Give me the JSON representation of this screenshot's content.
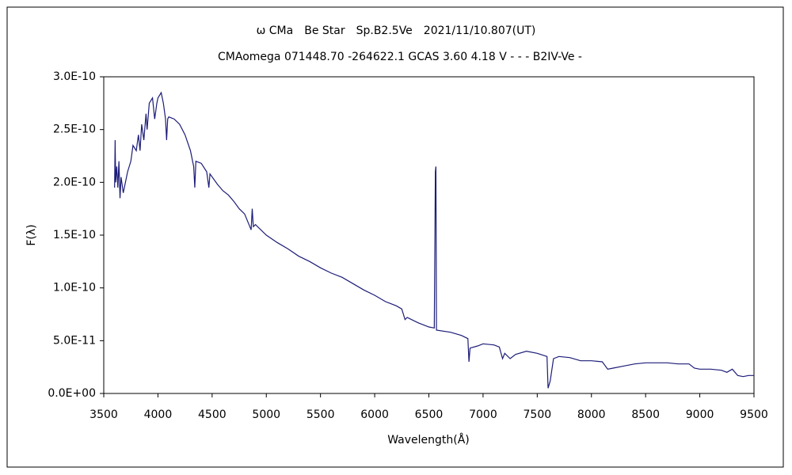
{
  "chart_data": {
    "type": "line",
    "title": "ω CMa　Be Star　Sp.B2.5Ve　2021/11/10.807(UT)",
    "subtitle": "CMAomega 071448.70 -264622.1 GCAS 3.60 4.18 V - - - B2IV-Ve -",
    "x_label": "Wavelength(Å)",
    "y_label": "F(λ)",
    "xlim": [
      3500,
      9500
    ],
    "xticks": [
      3500,
      4000,
      4500,
      5000,
      5500,
      6000,
      6500,
      7000,
      7500,
      8000,
      8500,
      9000,
      9500
    ],
    "ylim": [
      0,
      3e-10
    ],
    "yticks": [
      {
        "value": 0,
        "label": "0.0E+00"
      },
      {
        "value": 5e-11,
        "label": "5.0E-11"
      },
      {
        "value": 1e-10,
        "label": "1.0E-10"
      },
      {
        "value": 1.5e-10,
        "label": "1.5E-10"
      },
      {
        "value": 2e-10,
        "label": "2.0E-10"
      },
      {
        "value": 2.5e-10,
        "label": "2.5E-10"
      },
      {
        "value": 3e-10,
        "label": "3.0E-10"
      }
    ],
    "series": [
      {
        "color": "#1c1c78",
        "x": [
          3600,
          3605,
          3610,
          3620,
          3630,
          3640,
          3650,
          3660,
          3680,
          3700,
          3720,
          3750,
          3770,
          3800,
          3820,
          3835,
          3850,
          3870,
          3890,
          3900,
          3920,
          3950,
          3970,
          3990,
          4000,
          4030,
          4050,
          4070,
          4080,
          4090,
          4100,
          4150,
          4200,
          4250,
          4300,
          4330,
          4340,
          4350,
          4400,
          4450,
          4470,
          4480,
          4550,
          4600,
          4650,
          4700,
          4750,
          4800,
          4840,
          4860,
          4870,
          4880,
          4900,
          5000,
          5100,
          5200,
          5300,
          5400,
          5500,
          5600,
          5700,
          5800,
          5900,
          6000,
          6100,
          6200,
          6250,
          6280,
          6300,
          6400,
          6500,
          6550,
          6560,
          6565,
          6570,
          6700,
          6800,
          6860,
          6870,
          6880,
          6950,
          7000,
          7100,
          7150,
          7180,
          7200,
          7250,
          7300,
          7400,
          7500,
          7590,
          7600,
          7620,
          7650,
          7700,
          7800,
          7900,
          8000,
          8100,
          8150,
          8200,
          8300,
          8400,
          8500,
          8600,
          8700,
          8800,
          8900,
          8950,
          9000,
          9100,
          9200,
          9250,
          9300,
          9350,
          9400,
          9450,
          9500
        ],
        "values": [
          1.95e-10,
          2.4e-10,
          2e-10,
          2.15e-10,
          1.95e-10,
          2.2e-10,
          1.85e-10,
          2.05e-10,
          1.9e-10,
          2e-10,
          2.1e-10,
          2.2e-10,
          2.35e-10,
          2.3e-10,
          2.45e-10,
          2.3e-10,
          2.55e-10,
          2.4e-10,
          2.65e-10,
          2.5e-10,
          2.75e-10,
          2.8e-10,
          2.6e-10,
          2.75e-10,
          2.8e-10,
          2.85e-10,
          2.75e-10,
          2.6e-10,
          2.4e-10,
          2.6e-10,
          2.62e-10,
          2.6e-10,
          2.55e-10,
          2.45e-10,
          2.3e-10,
          2.15e-10,
          1.95e-10,
          2.2e-10,
          2.18e-10,
          2.1e-10,
          1.95e-10,
          2.08e-10,
          1.98e-10,
          1.92e-10,
          1.88e-10,
          1.82e-10,
          1.75e-10,
          1.7e-10,
          1.6e-10,
          1.55e-10,
          1.75e-10,
          1.58e-10,
          1.6e-10,
          1.5e-10,
          1.43e-10,
          1.37e-10,
          1.3e-10,
          1.25e-10,
          1.19e-10,
          1.14e-10,
          1.1e-10,
          1.04e-10,
          9.8e-11,
          9.3e-11,
          8.7e-11,
          8.3e-11,
          8e-11,
          7e-11,
          7.2e-11,
          6.7e-11,
          6.3e-11,
          6.2e-11,
          2.1e-10,
          2.15e-10,
          6e-11,
          5.8e-11,
          5.5e-11,
          5.2e-11,
          3e-11,
          4.3e-11,
          4.5e-11,
          4.7e-11,
          4.6e-11,
          4.4e-11,
          3.3e-11,
          3.8e-11,
          3.3e-11,
          3.7e-11,
          4e-11,
          3.8e-11,
          3.5e-11,
          5e-12,
          1.2e-11,
          3.3e-11,
          3.5e-11,
          3.4e-11,
          3.1e-11,
          3.1e-11,
          3e-11,
          2.3e-11,
          2.4e-11,
          2.6e-11,
          2.8e-11,
          2.9e-11,
          2.9e-11,
          2.9e-11,
          2.8e-11,
          2.8e-11,
          2.4e-11,
          2.3e-11,
          2.3e-11,
          2.2e-11,
          2e-11,
          2.3e-11,
          1.7e-11,
          1.6e-11,
          1.7e-11,
          1.7e-11
        ]
      }
    ]
  }
}
